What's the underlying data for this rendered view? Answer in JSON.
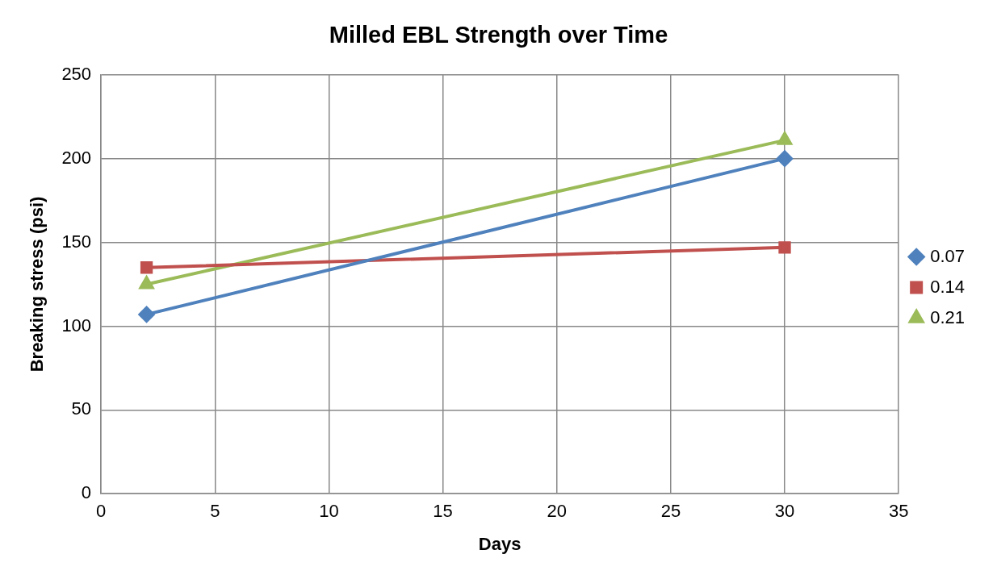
{
  "chart_data": {
    "type": "line",
    "title": "Milled EBL Strength over Time",
    "xlabel": "Days",
    "ylabel": "Breaking stress (psi)",
    "x": [
      2,
      30
    ],
    "series": [
      {
        "name": "0.07",
        "color": "#4f81bd",
        "values": [
          107,
          200
        ],
        "marker": "diamond"
      },
      {
        "name": "0.14",
        "color": "#c0504d",
        "values": [
          135,
          147
        ],
        "marker": "square"
      },
      {
        "name": "0.21",
        "color": "#9bbb59",
        "values": [
          125,
          211
        ],
        "marker": "triangle"
      }
    ],
    "xlim": [
      0,
      35
    ],
    "xticks": [
      0,
      5,
      10,
      15,
      20,
      25,
      30,
      35
    ],
    "ylim": [
      0,
      250
    ],
    "yticks": [
      0,
      50,
      100,
      150,
      200,
      250
    ],
    "grid": true,
    "legend": "right",
    "line_style": "solid"
  }
}
